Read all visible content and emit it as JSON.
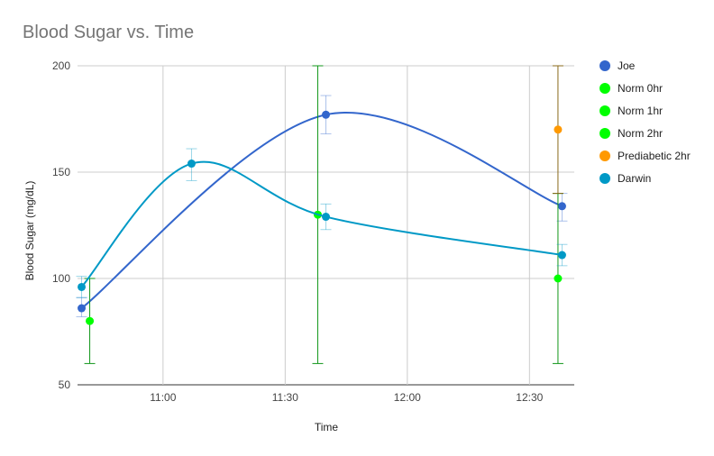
{
  "chart_data": {
    "type": "line",
    "title": "Blood Sugar vs. Time",
    "xlabel": "Time",
    "ylabel": "Blood Sugar (mg/dL)",
    "ylim": [
      50,
      200
    ],
    "xlim": [
      "10:39",
      "12:41"
    ],
    "yticks": [
      50,
      100,
      150,
      200
    ],
    "xticks": [
      {
        "label": "11:00",
        "t": "11:00"
      },
      {
        "label": "11:30",
        "t": "11:30"
      },
      {
        "label": "12:00",
        "t": "12:00"
      },
      {
        "label": "12:30",
        "t": "12:30"
      }
    ],
    "grid": true,
    "legend_position": "right",
    "series": [
      {
        "name": "Joe",
        "color": "#3366cc",
        "line": true,
        "smooth": true,
        "points": [
          {
            "t": "10:40",
            "y": 86,
            "err": [
              82,
              91
            ]
          },
          {
            "t": "11:40",
            "y": 177,
            "err": [
              168,
              186
            ]
          },
          {
            "t": "12:38",
            "y": 134,
            "err": [
              127,
              140
            ]
          }
        ]
      },
      {
        "name": "Norm 0hr",
        "color": "#00ff00",
        "errColor": "#109618",
        "line": false,
        "points": [
          {
            "t": "10:42",
            "y": 80,
            "err": [
              60,
              100
            ]
          }
        ]
      },
      {
        "name": "Norm 1hr",
        "color": "#00ff00",
        "errColor": "#109618",
        "line": false,
        "points": [
          {
            "t": "11:38",
            "y": 130,
            "err": [
              60,
              200
            ]
          }
        ]
      },
      {
        "name": "Norm 2hr",
        "color": "#00ff00",
        "errColor": "#109618",
        "line": false,
        "points": [
          {
            "t": "12:37",
            "y": 100,
            "err": [
              60,
              140
            ]
          }
        ]
      },
      {
        "name": "Prediabetic 2hr",
        "color": "#ff9900",
        "errColor": "#8a6a1a",
        "line": false,
        "points": [
          {
            "t": "12:37",
            "y": 170,
            "err": [
              140,
              200
            ]
          }
        ]
      },
      {
        "name": "Darwin",
        "color": "#0099c6",
        "line": true,
        "smooth": true,
        "points": [
          {
            "t": "10:40",
            "y": 96,
            "err": [
              91,
              101
            ]
          },
          {
            "t": "11:07",
            "y": 154,
            "err": [
              146,
              161
            ]
          },
          {
            "t": "11:40",
            "y": 129,
            "err": [
              123,
              135
            ]
          },
          {
            "t": "12:38",
            "y": 111,
            "err": [
              106,
              116
            ]
          }
        ]
      }
    ]
  }
}
